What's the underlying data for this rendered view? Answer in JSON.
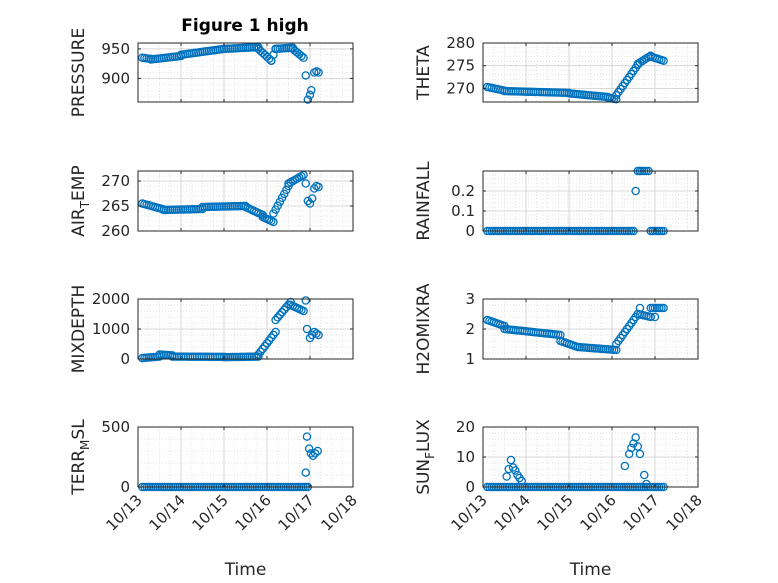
{
  "chart_data": {
    "type": "scatter",
    "title": "Figure 1 high",
    "xlabel": "Time",
    "marker_color": "#0072bd",
    "xlim": [
      13,
      18
    ],
    "x_ticks": [
      13,
      14,
      15,
      16,
      17,
      18
    ],
    "x_tick_labels": [
      "10/13",
      "10/14",
      "10/15",
      "10/16",
      "10/17",
      "10/18"
    ],
    "grid": true,
    "minor_grid": true,
    "panels": [
      {
        "id": "pressure",
        "ylabel": "PRESSURE",
        "ylim": [
          860,
          960
        ],
        "y_ticks": [
          900,
          950
        ],
        "y_tick_labels": [
          "900",
          "950"
        ],
        "series": [
          {
            "name": "PRESSURE",
            "segments": [
              {
                "x0": 13.1,
                "x1": 13.3,
                "y0": 935,
                "y1": 933
              },
              {
                "x0": 13.3,
                "x1": 14.0,
                "y0": 932,
                "y1": 938
              },
              {
                "x0": 14.0,
                "x1": 15.0,
                "y0": 940,
                "y1": 950
              },
              {
                "x0": 15.0,
                "x1": 15.8,
                "y0": 950,
                "y1": 953
              },
              {
                "x0": 15.8,
                "x1": 16.1,
                "y0": 950,
                "y1": 930
              },
              {
                "x0": 16.1,
                "x1": 16.2,
                "y0": 930,
                "y1": 950
              },
              {
                "x0": 16.2,
                "x1": 16.6,
                "y0": 950,
                "y1": 952
              },
              {
                "x0": 16.6,
                "x1": 16.85,
                "y0": 950,
                "y1": 935
              }
            ],
            "points": [
              [
                16.9,
                905
              ],
              [
                16.95,
                864
              ],
              [
                17.0,
                872
              ],
              [
                17.03,
                880
              ],
              [
                17.1,
                910
              ],
              [
                17.15,
                912
              ],
              [
                17.2,
                910
              ]
            ]
          }
        ]
      },
      {
        "id": "theta",
        "ylabel": "THETA",
        "ylim": [
          267,
          280
        ],
        "y_ticks": [
          270,
          275,
          280
        ],
        "y_tick_labels": [
          "270",
          "275",
          "280"
        ],
        "series": [
          {
            "name": "THETA",
            "segments": [
              {
                "x0": 13.1,
                "x1": 13.5,
                "y0": 270.3,
                "y1": 269.5
              },
              {
                "x0": 13.5,
                "x1": 15.0,
                "y0": 269.4,
                "y1": 269.0
              },
              {
                "x0": 15.0,
                "x1": 15.9,
                "y0": 268.9,
                "y1": 268.1
              },
              {
                "x0": 15.9,
                "x1": 16.1,
                "y0": 268.0,
                "y1": 267.6
              },
              {
                "x0": 16.1,
                "x1": 16.6,
                "y0": 268.5,
                "y1": 275.2
              },
              {
                "x0": 16.6,
                "x1": 16.9,
                "y0": 275.4,
                "y1": 277.2
              },
              {
                "x0": 16.9,
                "x1": 17.2,
                "y0": 277.0,
                "y1": 276.1
              }
            ],
            "points": []
          }
        ]
      },
      {
        "id": "air_temp",
        "ylabel": "AIR_TEMP",
        "ylim": [
          260,
          272
        ],
        "y_ticks": [
          260,
          265,
          270
        ],
        "y_tick_labels": [
          "260",
          "265",
          "270"
        ],
        "series": [
          {
            "name": "AIR_TEMP",
            "segments": [
              {
                "x0": 13.1,
                "x1": 13.6,
                "y0": 265.5,
                "y1": 264.3
              },
              {
                "x0": 13.6,
                "x1": 14.5,
                "y0": 264.2,
                "y1": 264.4
              },
              {
                "x0": 14.5,
                "x1": 15.5,
                "y0": 264.8,
                "y1": 265.0
              },
              {
                "x0": 15.5,
                "x1": 15.9,
                "y0": 264.8,
                "y1": 263.2
              },
              {
                "x0": 15.9,
                "x1": 16.15,
                "y0": 262.8,
                "y1": 261.8
              },
              {
                "x0": 16.15,
                "x1": 16.5,
                "y0": 263.5,
                "y1": 269.0
              },
              {
                "x0": 16.5,
                "x1": 16.85,
                "y0": 269.5,
                "y1": 271.2
              }
            ],
            "points": [
              [
                16.9,
                269.5
              ],
              [
                16.95,
                266.0
              ],
              [
                17.0,
                265.5
              ],
              [
                17.05,
                266.5
              ],
              [
                17.1,
                268.5
              ],
              [
                17.15,
                269.0
              ],
              [
                17.2,
                268.8
              ]
            ]
          }
        ]
      },
      {
        "id": "rainfall",
        "ylabel": "RAINFALL",
        "ylim": [
          0,
          0.3
        ],
        "y_ticks": [
          0,
          0.1,
          0.2
        ],
        "y_tick_labels": [
          "0",
          "0.1",
          "0.2"
        ],
        "series": [
          {
            "name": "RAINFALL",
            "segments": [
              {
                "x0": 13.1,
                "x1": 16.5,
                "y0": 0,
                "y1": 0
              },
              {
                "x0": 16.6,
                "x1": 16.85,
                "y0": 0.3,
                "y1": 0.3
              },
              {
                "x0": 16.9,
                "x1": 17.2,
                "y0": 0,
                "y1": 0
              }
            ],
            "points": [
              [
                16.55,
                0.2
              ],
              [
                16.65,
                0.3
              ]
            ]
          }
        ]
      },
      {
        "id": "mixdepth",
        "ylabel": "MIXDEPTH",
        "ylim": [
          0,
          2000
        ],
        "y_ticks": [
          0,
          1000,
          2000
        ],
        "y_tick_labels": [
          "0",
          "1000",
          "2000"
        ],
        "series": [
          {
            "name": "MIXDEPTH",
            "segments": [
              {
                "x0": 13.1,
                "x1": 13.5,
                "y0": 30,
                "y1": 80
              },
              {
                "x0": 13.5,
                "x1": 13.8,
                "y0": 150,
                "y1": 120
              },
              {
                "x0": 13.8,
                "x1": 15.0,
                "y0": 80,
                "y1": 70
              },
              {
                "x0": 15.0,
                "x1": 15.8,
                "y0": 60,
                "y1": 80
              },
              {
                "x0": 15.8,
                "x1": 16.2,
                "y0": 150,
                "y1": 900
              },
              {
                "x0": 16.2,
                "x1": 16.55,
                "y0": 1300,
                "y1": 1900
              },
              {
                "x0": 16.55,
                "x1": 16.85,
                "y0": 1800,
                "y1": 1600
              }
            ],
            "points": [
              [
                16.9,
                1950
              ],
              [
                16.93,
                1000
              ],
              [
                17.0,
                700
              ],
              [
                17.05,
                800
              ],
              [
                17.1,
                900
              ],
              [
                17.15,
                850
              ],
              [
                17.2,
                800
              ]
            ]
          }
        ]
      },
      {
        "id": "h2omixra",
        "ylabel": "H2OMIXRA",
        "ylim": [
          1,
          3
        ],
        "y_ticks": [
          1,
          2,
          3
        ],
        "y_tick_labels": [
          "1",
          "2",
          "3"
        ],
        "series": [
          {
            "name": "H2OMIXRA",
            "segments": [
              {
                "x0": 13.1,
                "x1": 13.5,
                "y0": 2.3,
                "y1": 2.1
              },
              {
                "x0": 13.5,
                "x1": 14.8,
                "y0": 2.0,
                "y1": 1.8
              },
              {
                "x0": 14.8,
                "x1": 15.2,
                "y0": 1.6,
                "y1": 1.4
              },
              {
                "x0": 15.2,
                "x1": 16.1,
                "y0": 1.4,
                "y1": 1.3
              },
              {
                "x0": 16.1,
                "x1": 16.6,
                "y0": 1.5,
                "y1": 2.5
              },
              {
                "x0": 16.6,
                "x1": 16.9,
                "y0": 2.5,
                "y1": 2.4
              },
              {
                "x0": 16.9,
                "x1": 17.2,
                "y0": 2.7,
                "y1": 2.7
              }
            ],
            "points": [
              [
                16.65,
                2.7
              ],
              [
                17.0,
                2.4
              ]
            ]
          }
        ]
      },
      {
        "id": "terr_msl",
        "ylabel": "TERR_MSL",
        "ylim": [
          0,
          500
        ],
        "y_ticks": [
          0,
          500
        ],
        "y_tick_labels": [
          "0",
          "500"
        ],
        "series": [
          {
            "name": "TERR_MSL",
            "segments": [
              {
                "x0": 13.1,
                "x1": 16.95,
                "y0": 0,
                "y1": 0
              }
            ],
            "points": [
              [
                16.9,
                120
              ],
              [
                16.93,
                420
              ],
              [
                16.98,
                320
              ],
              [
                17.02,
                280
              ],
              [
                17.07,
                260
              ],
              [
                17.12,
                280
              ],
              [
                17.18,
                300
              ]
            ]
          }
        ]
      },
      {
        "id": "sun_flux",
        "ylabel": "SUN_FLUX",
        "ylim": [
          0,
          20
        ],
        "y_ticks": [
          0,
          10,
          20
        ],
        "y_tick_labels": [
          "0",
          "10",
          "20"
        ],
        "series": [
          {
            "name": "SUN_FLUX",
            "segments": [
              {
                "x0": 13.1,
                "x1": 17.2,
                "y0": 0,
                "y1": 0
              }
            ],
            "points": [
              [
                13.55,
                3.5
              ],
              [
                13.6,
                6
              ],
              [
                13.65,
                9
              ],
              [
                13.7,
                6.5
              ],
              [
                13.75,
                5.5
              ],
              [
                13.8,
                4
              ],
              [
                13.85,
                3
              ],
              [
                13.9,
                2
              ],
              [
                16.3,
                7
              ],
              [
                16.4,
                11
              ],
              [
                16.45,
                13
              ],
              [
                16.5,
                14.5
              ],
              [
                16.55,
                16.5
              ],
              [
                16.6,
                13.5
              ],
              [
                16.65,
                11
              ],
              [
                16.75,
                4
              ],
              [
                16.8,
                1
              ]
            ]
          }
        ]
      }
    ]
  }
}
